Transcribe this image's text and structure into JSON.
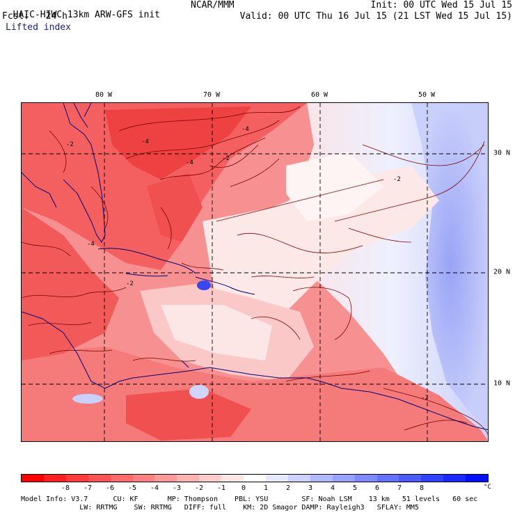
{
  "header": {
    "model_title": "HAIC-HIWC 13km ARW-GFS init",
    "org": "NCAR/MMM",
    "init": "Init: 00 UTC Wed 15 Jul 15",
    "fcst": "Fcst:   24 h",
    "valid": "Valid: 00 UTC Thu 16 Jul 15 (21 LST Wed 15 Jul 15)",
    "field": "Lifted index"
  },
  "map": {
    "lon_labels": [
      "80 W",
      "70 W",
      "60 W",
      "50 W"
    ],
    "lat_labels": [
      "30 N",
      "20 N",
      "10 N"
    ],
    "contour_labels": [
      "-4",
      "-4",
      "-4",
      "-2",
      "-2",
      "-2",
      "-2",
      "-4",
      "-2"
    ],
    "colors": {
      "strong_red": "#f03838",
      "red": "#f76464",
      "light_red": "#fba0a0",
      "pale": "#fdd8d8",
      "white": "#ffffff",
      "light_blue": "#c8d0fb",
      "blue": "#8896f5",
      "deep_blue": "#3848f0"
    }
  },
  "colorbar": {
    "labels": [
      "-8",
      "-7",
      "-6",
      "-5",
      "-4",
      "-3",
      "-2",
      "-1",
      "0",
      "1",
      "2",
      "3",
      "4",
      "5",
      "6",
      "7",
      "8"
    ],
    "unit": "°C",
    "colors": [
      "#ff0000",
      "#ff2020",
      "#ff3a3a",
      "#ff5252",
      "#ff6a6a",
      "#ff8080",
      "#ff9999",
      "#ffb2b2",
      "#ffcccc",
      "#ffe6e6",
      "#ffffff",
      "#e6e8ff",
      "#ccd1ff",
      "#b0b8ff",
      "#98a2ff",
      "#7e8aff",
      "#6472ff",
      "#4a5aff",
      "#3040ff",
      "#1828ff",
      "#0010ff"
    ]
  },
  "info": {
    "line1": "Model Info: V3.7      CU: KF       MP: Thompson    PBL: YSU        SF: Noah LSM    13 km   51 levels   60 sec",
    "line2": "              LW: RRTMG    SW: RRTMG   DIFF: full    KM: 2D Smagor DAMP: Rayleigh3   SFLAY: MM5"
  }
}
